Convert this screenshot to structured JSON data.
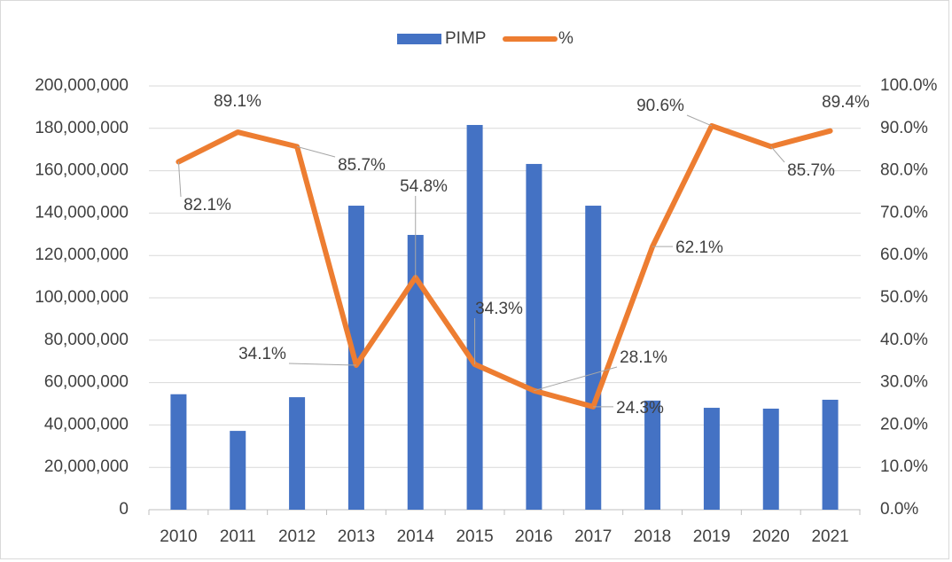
{
  "chart_data": {
    "type": "bar+line",
    "categories": [
      "2010",
      "2011",
      "2012",
      "2013",
      "2014",
      "2015",
      "2016",
      "2017",
      "2018",
      "2019",
      "2020",
      "2021"
    ],
    "series": [
      {
        "name": "PIMP",
        "type": "bar",
        "color": "#4472c4",
        "axis": "y",
        "values": [
          54500000,
          37200000,
          53100000,
          143500000,
          129700000,
          181600000,
          163200000,
          143500000,
          51500000,
          48100000,
          47700000,
          51900000
        ]
      },
      {
        "name": "%",
        "type": "line",
        "color": "#ed7d31",
        "axis": "y2",
        "values": [
          82.1,
          89.1,
          85.7,
          34.1,
          54.8,
          34.3,
          28.1,
          24.3,
          62.1,
          90.6,
          85.7,
          89.4
        ],
        "value_labels": [
          "82.1%",
          "89.1%",
          "85.7%",
          "34.1%",
          "54.8%",
          "34.3%",
          "28.1%",
          "24.3%",
          "62.1%",
          "90.6%",
          "85.7%",
          "89.4%"
        ]
      }
    ],
    "ylim": [
      0,
      200000000
    ],
    "yticks": [
      0,
      {
        "value": 20000000,
        "label": "20,000,000"
      },
      {
        "value": 40000000,
        "label": "40,000,000"
      },
      {
        "value": 60000000,
        "label": "60,000,000"
      },
      {
        "value": 80000000,
        "label": "80,000,000"
      },
      {
        "value": 100000000,
        "label": "100,000,000"
      },
      {
        "value": 120000000,
        "label": "120,000,000"
      },
      {
        "value": 140000000,
        "label": "140,000,000"
      },
      {
        "value": 160000000,
        "label": "160,000,000"
      },
      {
        "value": 180000000,
        "label": "180,000,000"
      },
      {
        "value": 200000000,
        "label": "200,000,000"
      }
    ],
    "y2lim": [
      0,
      100
    ],
    "y2ticks": [
      {
        "value": 0,
        "label": "0.0%"
      },
      {
        "value": 10,
        "label": "10.0%"
      },
      {
        "value": 20,
        "label": "20.0%"
      },
      {
        "value": 30,
        "label": "30.0%"
      },
      {
        "value": 40,
        "label": "40.0%"
      },
      {
        "value": 50,
        "label": "50.0%"
      },
      {
        "value": 60,
        "label": "60.0%"
      },
      {
        "value": 70,
        "label": "70.0%"
      },
      {
        "value": 80,
        "label": "80.0%"
      },
      {
        "value": 90,
        "label": "90.0%"
      },
      {
        "value": 100,
        "label": "100.0%"
      }
    ],
    "grid": true,
    "legend": "top"
  }
}
